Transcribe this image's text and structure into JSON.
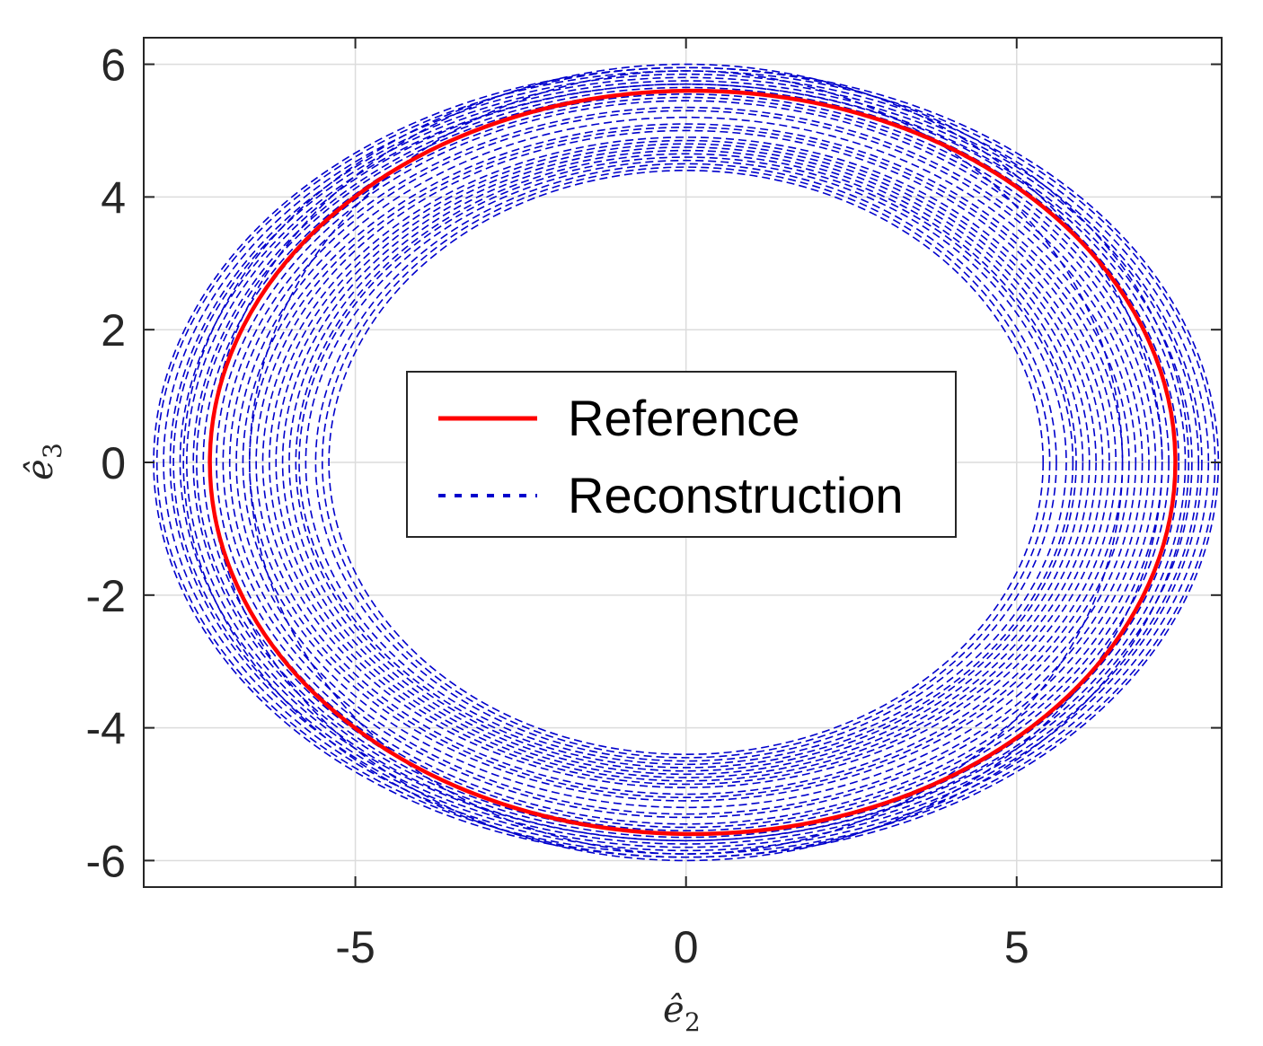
{
  "chart_data": {
    "type": "line",
    "xlabel": "ê₂",
    "ylabel": "ê₃",
    "xlim": [
      -8.2,
      8.1
    ],
    "ylim": [
      -6.4,
      6.4
    ],
    "xticks": [
      -5,
      0,
      5
    ],
    "xtick_labels": [
      "-5",
      "0",
      "5"
    ],
    "yticks": [
      -6,
      -4,
      -2,
      0,
      2,
      4,
      6
    ],
    "ytick_labels": [
      "-6",
      "-4",
      "-2",
      "0",
      "2",
      "4",
      "6"
    ],
    "grid": true,
    "legend_position": "center",
    "series": [
      {
        "name": "Reference",
        "style": "solid",
        "color": "#ff0000",
        "shape": "ellipse",
        "center": [
          0.1,
          0.0
        ],
        "semi_axes": [
          7.3,
          5.6
        ]
      },
      {
        "name": "Reconstruction",
        "style": "dotted",
        "color": "#0000cc",
        "shape": "ellipse-family",
        "orbits": [
          [
            8.05,
            5.95
          ],
          [
            8.0,
            5.9
          ],
          [
            7.9,
            5.85
          ],
          [
            7.8,
            5.8
          ],
          [
            7.75,
            5.75
          ],
          [
            7.65,
            5.7
          ],
          [
            7.55,
            5.7
          ],
          [
            7.45,
            5.65
          ],
          [
            7.4,
            5.6
          ],
          [
            7.3,
            5.55
          ],
          [
            7.2,
            5.5
          ],
          [
            7.1,
            5.45
          ],
          [
            7.0,
            5.35
          ],
          [
            6.9,
            5.3
          ],
          [
            6.8,
            5.2
          ],
          [
            6.7,
            5.1
          ],
          [
            6.6,
            5.05
          ],
          [
            6.5,
            5.0
          ],
          [
            6.4,
            4.9
          ],
          [
            6.3,
            4.85
          ],
          [
            6.2,
            4.8
          ],
          [
            6.1,
            4.75
          ],
          [
            6.0,
            4.7
          ],
          [
            5.9,
            4.65
          ],
          [
            5.85,
            4.6
          ],
          [
            5.75,
            4.55
          ],
          [
            5.6,
            4.5
          ],
          [
            5.5,
            4.45
          ],
          [
            5.4,
            4.4
          ],
          [
            7.6,
            5.95
          ],
          [
            7.2,
            6.0
          ],
          [
            6.6,
            5.9
          ]
        ]
      }
    ]
  },
  "legend": {
    "items": [
      {
        "label": "Reference",
        "color": "#ff0000",
        "style": "solid"
      },
      {
        "label": "Reconstruction",
        "color": "#0000cc",
        "style": "dotted"
      }
    ]
  },
  "axes": {
    "xlabel_main": "ê",
    "xlabel_sub": "2",
    "ylabel_main": "ê",
    "ylabel_sub": "3"
  }
}
